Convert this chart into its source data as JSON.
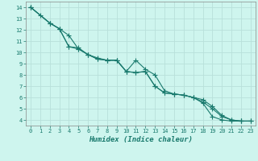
{
  "xlabel": "Humidex (Indice chaleur)",
  "bg_color": "#cef5ee",
  "grid_color": "#b8e0da",
  "line_color": "#1a7a6e",
  "xlim": [
    -0.5,
    23.5
  ],
  "ylim": [
    3.5,
    14.5
  ],
  "xticks": [
    0,
    1,
    2,
    3,
    4,
    5,
    6,
    7,
    8,
    9,
    10,
    11,
    12,
    13,
    14,
    15,
    16,
    17,
    18,
    19,
    20,
    21,
    22,
    23
  ],
  "yticks": [
    4,
    5,
    6,
    7,
    8,
    9,
    10,
    11,
    12,
    13,
    14
  ],
  "line1_x": [
    0,
    1,
    2,
    3,
    4,
    5,
    6,
    7,
    8,
    9,
    10,
    11,
    12,
    13,
    14,
    15,
    16,
    17,
    18,
    19,
    20,
    21,
    22
  ],
  "line1_y": [
    14.0,
    13.3,
    12.6,
    12.1,
    11.5,
    10.3,
    9.8,
    9.4,
    9.3,
    9.3,
    8.3,
    8.2,
    8.3,
    7.0,
    6.4,
    6.3,
    6.2,
    6.0,
    5.5,
    4.3,
    4.0,
    3.9,
    3.9
  ],
  "line2_x": [
    0,
    2,
    3,
    4,
    5,
    6,
    7,
    8,
    9,
    10,
    11,
    12,
    13,
    14,
    15,
    16,
    17,
    18,
    19,
    20,
    21,
    22,
    23
  ],
  "line2_y": [
    14.0,
    12.6,
    12.1,
    10.5,
    10.4,
    9.8,
    9.5,
    9.3,
    9.3,
    8.3,
    9.3,
    8.5,
    8.0,
    6.6,
    6.3,
    6.2,
    6.0,
    5.8,
    5.2,
    4.4,
    4.0,
    3.9,
    3.9
  ],
  "line3_x": [
    0,
    2,
    3,
    4,
    5,
    6,
    7,
    8,
    9,
    10,
    11,
    12,
    13,
    14,
    15,
    16,
    17,
    18,
    19,
    20,
    21,
    22,
    23
  ],
  "line3_y": [
    14.0,
    12.6,
    12.1,
    10.5,
    10.3,
    9.8,
    9.4,
    9.3,
    9.3,
    8.3,
    8.2,
    8.3,
    7.0,
    6.4,
    6.3,
    6.2,
    6.0,
    5.6,
    5.0,
    4.3,
    4.0,
    3.9,
    3.9
  ],
  "xlabel_fontsize": 6.5,
  "tick_fontsize": 5.0,
  "marker_size": 2.0,
  "line_width": 0.8
}
